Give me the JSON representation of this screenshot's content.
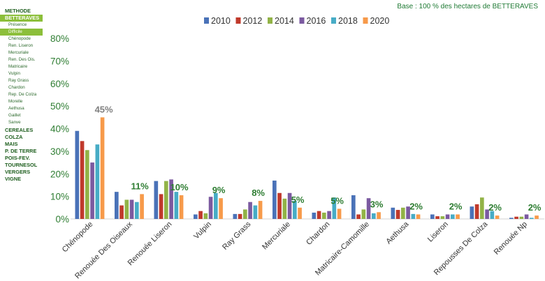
{
  "sidebar": {
    "top_items": [
      {
        "label": "METHODE"
      },
      {
        "label": "BETTERAVES"
      },
      {
        "label": "CEREALES"
      },
      {
        "label": "COLZA"
      },
      {
        "label": "MAIS"
      },
      {
        "label": "P. DE TERRE"
      },
      {
        "label": "POIS-FEV."
      },
      {
        "label": "TOURNESOL"
      },
      {
        "label": "VERGERS"
      },
      {
        "label": "VIGNE"
      }
    ],
    "sub_items": [
      {
        "label": "Présence"
      },
      {
        "label": "Difficile"
      },
      {
        "label": "Chénopode"
      },
      {
        "label": "Ren. Liseron"
      },
      {
        "label": "Mercuriale"
      },
      {
        "label": "Ren. Des Ois."
      },
      {
        "label": "Matricaire"
      },
      {
        "label": "Vulpin"
      },
      {
        "label": "Ray Grass"
      },
      {
        "label": "Chardon"
      },
      {
        "label": "Rep. De Colza"
      },
      {
        "label": "Morelle"
      },
      {
        "label": "Aethusa"
      },
      {
        "label": "Gaillet"
      },
      {
        "label": "Sanve"
      }
    ],
    "active_top": "BETTERAVES",
    "active_sub": "Difficile",
    "active_color": "#8cbf3a",
    "text_color": "#1f5f1f"
  },
  "chart_data": {
    "type": "bar",
    "base_label": "Base : 100 % des hectares de BETTERAVES",
    "categories": [
      "Chénopode",
      "Renouée Des Oiseaux",
      "Renouée Liseron",
      "Vulpin",
      "Ray Grass",
      "Mercuriale",
      "Chardon",
      "Matricaire-Camomille",
      "Aethusa",
      "Liseron",
      "Repousses De Colza",
      "Renouée Np"
    ],
    "series": [
      {
        "name": "2010",
        "color": "#4a72b8",
        "values": [
          39,
          12,
          16.8,
          2,
          2.2,
          17,
          2.8,
          10.5,
          5,
          2,
          5.5,
          0.5
        ]
      },
      {
        "name": "2012",
        "color": "#c0392b",
        "values": [
          34.5,
          6,
          11,
          3.5,
          2.2,
          11.5,
          3.5,
          2,
          4,
          1.2,
          6.5,
          1
        ]
      },
      {
        "name": "2014",
        "color": "#92b347",
        "values": [
          30.5,
          8.5,
          16.8,
          2.5,
          4.2,
          9,
          2.8,
          4.2,
          5,
          1.2,
          9.5,
          1
        ]
      },
      {
        "name": "2016",
        "color": "#7b5aa0",
        "values": [
          25,
          8.5,
          17.5,
          9.8,
          7.5,
          11.5,
          3.5,
          9.2,
          5.5,
          2,
          4.2,
          2
        ]
      },
      {
        "name": "2018",
        "color": "#47acc6",
        "values": [
          33,
          7.5,
          12,
          11.5,
          6,
          8,
          9.5,
          2.5,
          2.2,
          2,
          3.5,
          0.5
        ]
      },
      {
        "name": "2020",
        "color": "#f79a4a",
        "values": [
          45,
          11,
          10.5,
          9.2,
          8,
          5,
          4.5,
          3,
          2,
          2,
          1.5,
          1.5
        ]
      }
    ],
    "data_labels": [
      "45%",
      "11%",
      "10%",
      "9%",
      "8%",
      "5%",
      "5%",
      "3%",
      "2%",
      "2%",
      "2%",
      "2%"
    ],
    "label_colors": {
      "highlight": "#808080",
      "default": "#2e7d32"
    },
    "ylim": [
      0,
      80
    ],
    "yticks": [
      0,
      10,
      20,
      30,
      40,
      50,
      60,
      70,
      80
    ],
    "ytick_labels": [
      "0%",
      "10%",
      "20%",
      "30%",
      "40%",
      "50%",
      "60%",
      "70%",
      "80%"
    ],
    "xlabel": "",
    "ylabel": "",
    "grid": false,
    "legend_position": "top"
  }
}
